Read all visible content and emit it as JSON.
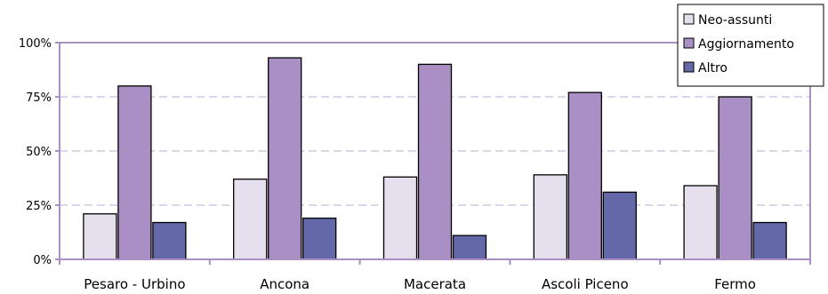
{
  "chart_data": {
    "type": "bar",
    "categories": [
      "Pesaro - Urbino",
      "Ancona",
      "Macerata",
      "Ascoli Piceno",
      "Fermo"
    ],
    "series": [
      {
        "name": "Neo-assunti",
        "values": [
          21,
          37,
          38,
          39,
          34
        ],
        "color": "#e6e0ee"
      },
      {
        "name": "Aggiornamento",
        "values": [
          80,
          93,
          90,
          77,
          75
        ],
        "color": "#a98fc3"
      },
      {
        "name": "Altro",
        "values": [
          17,
          19,
          11,
          31,
          17
        ],
        "color": "#6468a8"
      }
    ],
    "yticks": [
      "0%",
      "25%",
      "50%",
      "75%",
      "100%"
    ],
    "ylim": [
      0,
      100
    ],
    "grid": true,
    "legend_position": "top-right",
    "axis_color": "#a98fc3",
    "title": "",
    "xlabel": "",
    "ylabel": ""
  }
}
